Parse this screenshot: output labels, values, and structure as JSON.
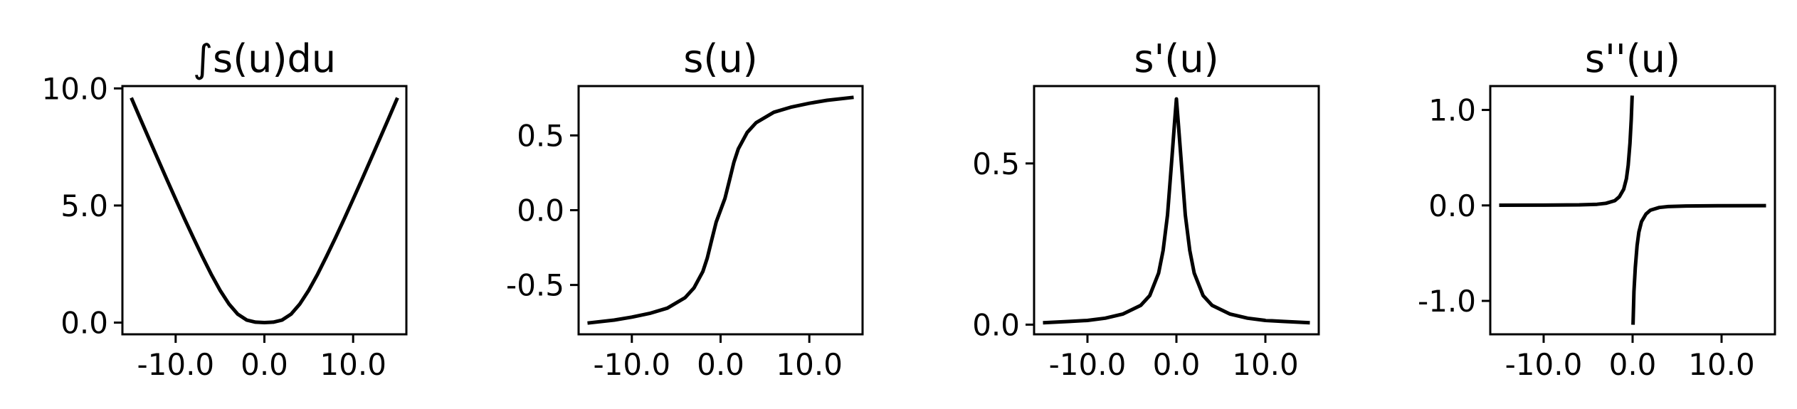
{
  "chart_data": [
    {
      "type": "line",
      "title": "∫s(u)du",
      "xlim": [
        -16,
        16
      ],
      "ylim": [
        -0.5,
        10.1
      ],
      "xticks": [
        {
          "v": -10,
          "label": "-10.0"
        },
        {
          "v": 0,
          "label": "0.0"
        },
        {
          "v": 10,
          "label": "10.0"
        }
      ],
      "yticks": [
        {
          "v": 0,
          "label": "0.0"
        },
        {
          "v": 5,
          "label": "5.0"
        },
        {
          "v": 10,
          "label": "10.0"
        }
      ],
      "series": [
        {
          "color": "#000000",
          "segments": [
            [
              [
                -15,
                9.6
              ],
              [
                -14,
                8.72
              ],
              [
                -13,
                7.85
              ],
              [
                -12,
                6.98
              ],
              [
                -11,
                6.12
              ],
              [
                -10,
                5.27
              ],
              [
                -9,
                4.43
              ],
              [
                -8,
                3.62
              ],
              [
                -7,
                2.83
              ],
              [
                -6,
                2.07
              ],
              [
                -5,
                1.38
              ],
              [
                -4,
                0.8
              ],
              [
                -3,
                0.36
              ],
              [
                -2,
                0.11
              ],
              [
                -1,
                0.02
              ],
              [
                0,
                0
              ],
              [
                1,
                0.02
              ],
              [
                2,
                0.11
              ],
              [
                3,
                0.36
              ],
              [
                4,
                0.8
              ],
              [
                5,
                1.38
              ],
              [
                6,
                2.07
              ],
              [
                7,
                2.83
              ],
              [
                8,
                3.62
              ],
              [
                9,
                4.43
              ],
              [
                10,
                5.27
              ],
              [
                11,
                6.12
              ],
              [
                12,
                6.98
              ],
              [
                13,
                7.85
              ],
              [
                14,
                8.72
              ],
              [
                15,
                9.6
              ]
            ]
          ]
        }
      ]
    },
    {
      "type": "line",
      "title": "s(u)",
      "xlim": [
        -16,
        16
      ],
      "ylim": [
        -0.83,
        0.83
      ],
      "xticks": [
        {
          "v": -10,
          "label": "-10.0"
        },
        {
          "v": 0,
          "label": "0.0"
        },
        {
          "v": 10,
          "label": "10.0"
        }
      ],
      "yticks": [
        {
          "v": -0.5,
          "label": "-0.5"
        },
        {
          "v": 0,
          "label": "0.0"
        },
        {
          "v": 0.5,
          "label": "0.5"
        }
      ],
      "series": [
        {
          "color": "#000000",
          "segments": [
            [
              [
                -15,
                -0.755
              ],
              [
                -12,
                -0.735
              ],
              [
                -10,
                -0.715
              ],
              [
                -8,
                -0.69
              ],
              [
                -6,
                -0.655
              ],
              [
                -4,
                -0.585
              ],
              [
                -3,
                -0.52
              ],
              [
                -2,
                -0.41
              ],
              [
                -1.5,
                -0.32
              ],
              [
                -1,
                -0.2
              ],
              [
                -0.5,
                -0.08
              ],
              [
                0,
                0
              ],
              [
                0.5,
                0.08
              ],
              [
                1,
                0.2
              ],
              [
                1.5,
                0.32
              ],
              [
                2,
                0.41
              ],
              [
                3,
                0.52
              ],
              [
                4,
                0.585
              ],
              [
                6,
                0.655
              ],
              [
                8,
                0.69
              ],
              [
                10,
                0.715
              ],
              [
                12,
                0.735
              ],
              [
                15,
                0.755
              ]
            ]
          ]
        }
      ]
    },
    {
      "type": "line",
      "title": "s'(u)",
      "xlim": [
        -16,
        16
      ],
      "ylim": [
        -0.03,
        0.74
      ],
      "xticks": [
        {
          "v": -10,
          "label": "-10.0"
        },
        {
          "v": 0,
          "label": "0.0"
        },
        {
          "v": 10,
          "label": "10.0"
        }
      ],
      "yticks": [
        {
          "v": 0,
          "label": "0.0"
        },
        {
          "v": 0.5,
          "label": "0.5"
        }
      ],
      "series": [
        {
          "color": "#000000",
          "segments": [
            [
              [
                -15,
                0.006
              ],
              [
                -12,
                0.01
              ],
              [
                -10,
                0.013
              ],
              [
                -8,
                0.02
              ],
              [
                -6,
                0.033
              ],
              [
                -4,
                0.06
              ],
              [
                -3,
                0.09
              ],
              [
                -2,
                0.16
              ],
              [
                -1.5,
                0.23
              ],
              [
                -1,
                0.34
              ],
              [
                -0.5,
                0.52
              ],
              [
                -0.2,
                0.63
              ],
              [
                0,
                0.7
              ],
              [
                0.2,
                0.63
              ],
              [
                0.5,
                0.52
              ],
              [
                1,
                0.34
              ],
              [
                1.5,
                0.23
              ],
              [
                2,
                0.16
              ],
              [
                3,
                0.09
              ],
              [
                4,
                0.06
              ],
              [
                6,
                0.033
              ],
              [
                8,
                0.02
              ],
              [
                10,
                0.013
              ],
              [
                12,
                0.01
              ],
              [
                15,
                0.006
              ]
            ]
          ]
        }
      ]
    },
    {
      "type": "line",
      "title": "s''(u)",
      "xlim": [
        -16,
        16
      ],
      "ylim": [
        -1.35,
        1.25
      ],
      "xticks": [
        {
          "v": -10,
          "label": "-10.0"
        },
        {
          "v": 0,
          "label": "0.0"
        },
        {
          "v": 10,
          "label": "10.0"
        }
      ],
      "yticks": [
        {
          "v": -1,
          "label": "-1.0"
        },
        {
          "v": 0,
          "label": "0.0"
        },
        {
          "v": 1,
          "label": "1.0"
        }
      ],
      "series": [
        {
          "color": "#000000",
          "segments": [
            [
              [
                -15,
                0.002
              ],
              [
                -10,
                0.003
              ],
              [
                -6,
                0.006
              ],
              [
                -4,
                0.012
              ],
              [
                -3,
                0.022
              ],
              [
                -2,
                0.05
              ],
              [
                -1.5,
                0.09
              ],
              [
                -1,
                0.17
              ],
              [
                -0.7,
                0.28
              ],
              [
                -0.5,
                0.42
              ],
              [
                -0.3,
                0.65
              ],
              [
                -0.15,
                0.9
              ],
              [
                -0.05,
                1.15
              ]
            ],
            [
              [
                0.05,
                -1.25
              ],
              [
                0.15,
                -0.9
              ],
              [
                0.3,
                -0.65
              ],
              [
                0.5,
                -0.42
              ],
              [
                0.7,
                -0.28
              ],
              [
                1,
                -0.17
              ],
              [
                1.5,
                -0.09
              ],
              [
                2,
                -0.05
              ],
              [
                3,
                -0.022
              ],
              [
                4,
                -0.012
              ],
              [
                6,
                -0.006
              ],
              [
                10,
                -0.003
              ],
              [
                15,
                -0.002
              ]
            ]
          ]
        }
      ]
    }
  ]
}
